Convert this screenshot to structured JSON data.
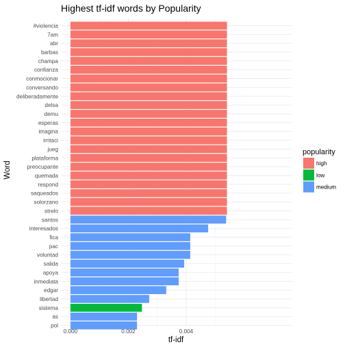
{
  "chart_data": {
    "type": "bar",
    "orientation": "horizontal",
    "title": "Highest tf-idf words by Popularity",
    "xlabel": "tf-idf",
    "ylabel": "Word",
    "xlim": [
      0,
      0.00555
    ],
    "x_ticks": [
      0.0,
      0.002,
      0.004
    ],
    "x_tick_labels": [
      "0.000",
      "0.002",
      "0.004"
    ],
    "grid": true,
    "legend_position": "right",
    "legend": {
      "title": "popularity",
      "entries": [
        {
          "label": "high",
          "color": "#F8766D"
        },
        {
          "label": "low",
          "color": "#00BA38"
        },
        {
          "label": "medium",
          "color": "#619CFF"
        }
      ]
    },
    "bars": [
      {
        "word": "#violencia",
        "value": 0.00541,
        "popularity": "high"
      },
      {
        "word": "7am",
        "value": 0.00541,
        "popularity": "high"
      },
      {
        "word": "abr",
        "value": 0.00541,
        "popularity": "high"
      },
      {
        "word": "barbas",
        "value": 0.00541,
        "popularity": "high"
      },
      {
        "word": "champa",
        "value": 0.00541,
        "popularity": "high"
      },
      {
        "word": "confianza",
        "value": 0.00541,
        "popularity": "high"
      },
      {
        "word": "conmocionar",
        "value": 0.00541,
        "popularity": "high"
      },
      {
        "word": "conversando",
        "value": 0.00541,
        "popularity": "high"
      },
      {
        "word": "deliberadamente",
        "value": 0.00541,
        "popularity": "high"
      },
      {
        "word": "delsa",
        "value": 0.00541,
        "popularity": "high"
      },
      {
        "word": "demu",
        "value": 0.00541,
        "popularity": "high"
      },
      {
        "word": "esperas",
        "value": 0.00541,
        "popularity": "high"
      },
      {
        "word": "imagina",
        "value": 0.00541,
        "popularity": "high"
      },
      {
        "word": "irritaci",
        "value": 0.00541,
        "popularity": "high"
      },
      {
        "word": "jueg",
        "value": 0.00541,
        "popularity": "high"
      },
      {
        "word": "plataforma",
        "value": 0.00541,
        "popularity": "high"
      },
      {
        "word": "preocupante",
        "value": 0.00541,
        "popularity": "high"
      },
      {
        "word": "quemada",
        "value": 0.00541,
        "popularity": "high"
      },
      {
        "word": "respond",
        "value": 0.00541,
        "popularity": "high"
      },
      {
        "word": "saqueados",
        "value": 0.00541,
        "popularity": "high"
      },
      {
        "word": "solorzano",
        "value": 0.00541,
        "popularity": "high"
      },
      {
        "word": "strelo",
        "value": 0.00541,
        "popularity": "high"
      },
      {
        "word": "santos",
        "value": 0.00538,
        "popularity": "medium"
      },
      {
        "word": "interesados",
        "value": 0.00476,
        "popularity": "medium"
      },
      {
        "word": "fica",
        "value": 0.00414,
        "popularity": "medium"
      },
      {
        "word": "pac",
        "value": 0.00414,
        "popularity": "medium"
      },
      {
        "word": "voluntad",
        "value": 0.00414,
        "popularity": "medium"
      },
      {
        "word": "salida",
        "value": 0.00393,
        "popularity": "medium"
      },
      {
        "word": "apoya",
        "value": 0.00374,
        "popularity": "medium"
      },
      {
        "word": "inmediata",
        "value": 0.00374,
        "popularity": "medium"
      },
      {
        "word": "edgar",
        "value": 0.00331,
        "popularity": "medium"
      },
      {
        "word": "libertad",
        "value": 0.00272,
        "popularity": "medium"
      },
      {
        "word": "sistema",
        "value": 0.00247,
        "popularity": "low"
      },
      {
        "word": "as",
        "value": 0.0023,
        "popularity": "medium"
      },
      {
        "word": "pol",
        "value": 0.0023,
        "popularity": "medium"
      }
    ]
  }
}
